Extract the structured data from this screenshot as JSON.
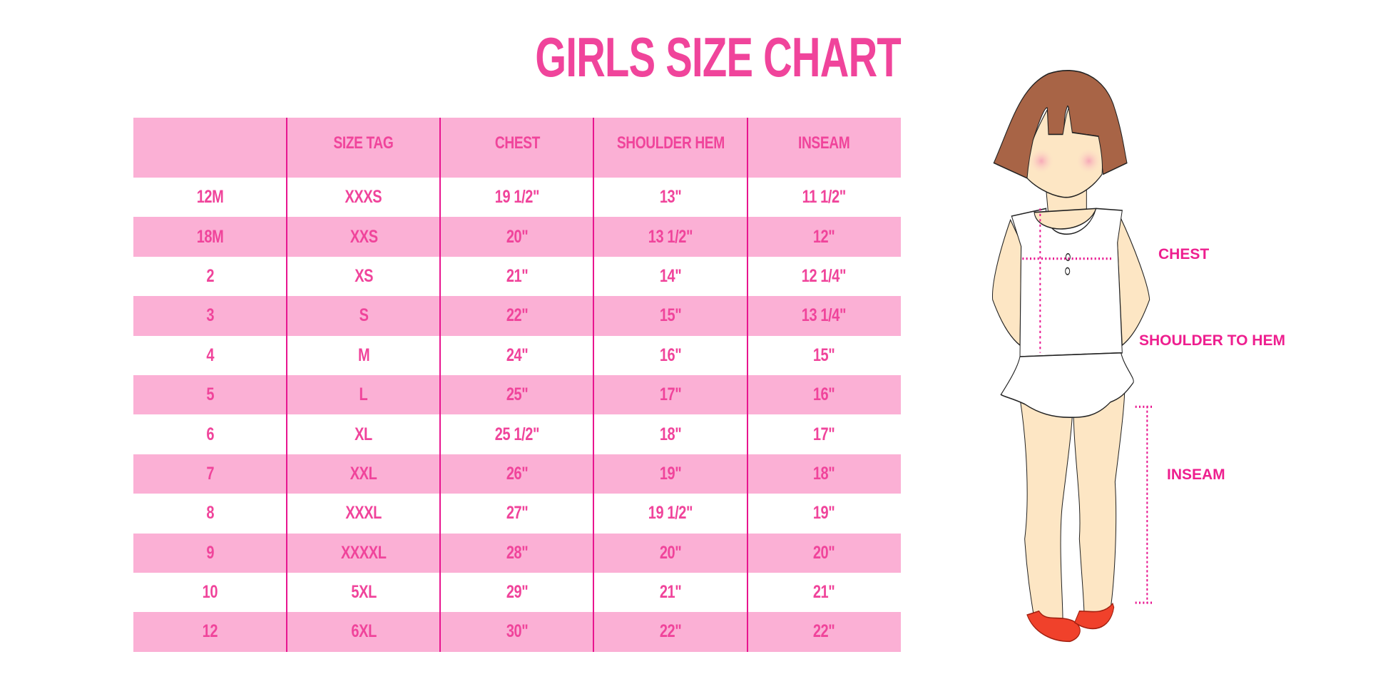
{
  "title": "GIRLS SIZE CHART",
  "colors": {
    "accent": "#f0449b",
    "row_pink": "#fbb0d5",
    "divider": "#e8158f",
    "label": "#ee1f8f"
  },
  "table": {
    "headers": [
      "",
      "SIZE TAG",
      "CHEST",
      "SHOULDER HEM",
      "INSEAM"
    ],
    "rows": [
      [
        "12M",
        "XXXS",
        "19 1/2\"",
        "13\"",
        "11 1/2\""
      ],
      [
        "18M",
        "XXS",
        "20\"",
        "13 1/2\"",
        "12\""
      ],
      [
        "2",
        "XS",
        "21\"",
        "14\"",
        "12 1/4\""
      ],
      [
        "3",
        "S",
        "22\"",
        "15\"",
        "13 1/4\""
      ],
      [
        "4",
        "M",
        "24\"",
        "16\"",
        "15\""
      ],
      [
        "5",
        "L",
        "25\"",
        "17\"",
        "16\""
      ],
      [
        "6",
        "XL",
        "25 1/2\"",
        "18\"",
        "17\""
      ],
      [
        "7",
        "XXL",
        "26\"",
        "19\"",
        "18\""
      ],
      [
        "8",
        "XXXL",
        "27\"",
        "19 1/2\"",
        "19\""
      ],
      [
        "9",
        "XXXXL",
        "28\"",
        "20\"",
        "20\""
      ],
      [
        "10",
        "5XL",
        "29\"",
        "21\"",
        "21\""
      ],
      [
        "12",
        "6XL",
        "30\"",
        "22\"",
        "22\""
      ]
    ]
  },
  "figure": {
    "labels": {
      "chest": "CHEST",
      "shoulder_to_hem": "SHOULDER TO HEM",
      "inseam": "INSEAM"
    }
  }
}
